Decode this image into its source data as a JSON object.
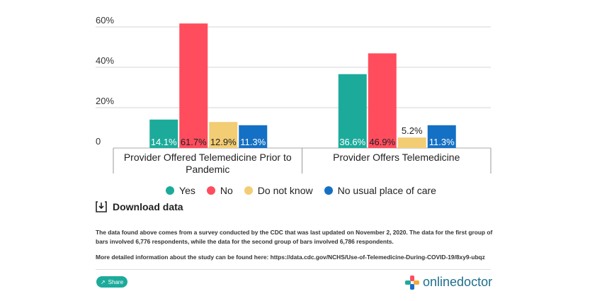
{
  "chart_data": {
    "type": "bar",
    "categories": [
      "Provider Offered Telemedicine Prior to Pandemic",
      "Provider Offers Telemedicine"
    ],
    "category_lines": [
      [
        "Provider Offered Telemedicine Prior to",
        "Pandemic"
      ],
      [
        "Provider Offers Telemedicine"
      ]
    ],
    "series": [
      {
        "name": "Yes",
        "color": "#1cab9b",
        "values": [
          14.1,
          36.6
        ],
        "labels": [
          "14.1%",
          "36.6%"
        ]
      },
      {
        "name": "No",
        "color": "#ff4d5e",
        "values": [
          61.7,
          46.9
        ],
        "labels": [
          "61.7%",
          "46.9%"
        ]
      },
      {
        "name": "Do not know",
        "color": "#f2cd74",
        "values": [
          12.9,
          5.2
        ],
        "labels": [
          "12.9%",
          "5.2%"
        ]
      },
      {
        "name": "No usual place of care",
        "color": "#1470c4",
        "values": [
          11.3,
          11.3
        ],
        "labels": [
          "11.3%",
          "11.3%"
        ]
      }
    ],
    "y_ticks": [
      {
        "value": 0,
        "label": "0"
      },
      {
        "value": 20,
        "label": "20%"
      },
      {
        "value": 40,
        "label": "40%"
      },
      {
        "value": 60,
        "label": "60%"
      }
    ],
    "ylim": [
      0,
      60
    ],
    "grid": true,
    "legend": "bottom"
  },
  "download": {
    "label": "Download data",
    "icon": "download-icon"
  },
  "notes": {
    "p1": "The data found above comes from a survey conducted by the CDC that was last updated on November 2, 2020. The data for the first group of bars involved 6,776 respondents, while the data for the second group of bars involved 6,786 respondents.",
    "p2": "More detailed information about the study can be found here: https://data.cdc.gov/NCHS/Use-of-Telemedicine-During-COVID-19/8xy9-ubqz"
  },
  "share": {
    "label": "Share",
    "icon": "share-icon"
  },
  "brand": {
    "name": "onlinedoctor",
    "icon": "medical-cross-logo"
  }
}
